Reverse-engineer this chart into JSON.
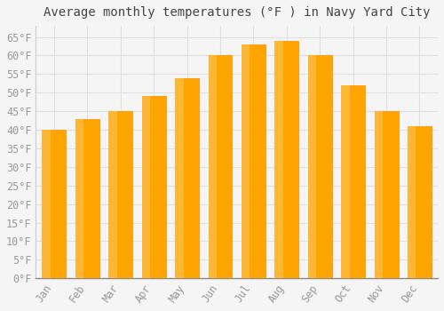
{
  "title": "Average monthly temperatures (°F ) in Navy Yard City",
  "months": [
    "Jan",
    "Feb",
    "Mar",
    "Apr",
    "May",
    "Jun",
    "Jul",
    "Aug",
    "Sep",
    "Oct",
    "Nov",
    "Dec"
  ],
  "values": [
    40,
    43,
    45,
    49,
    54,
    60,
    63,
    64,
    60,
    52,
    45,
    41
  ],
  "bar_color_face": "#FFA500",
  "bar_color_edge": "#FF8C00",
  "bar_color_left": "#FFB733",
  "background_color": "#F5F5F5",
  "grid_color": "#E0E0E0",
  "tick_label_color": "#999999",
  "title_color": "#444444",
  "ylim": [
    0,
    68
  ],
  "yticks": [
    0,
    5,
    10,
    15,
    20,
    25,
    30,
    35,
    40,
    45,
    50,
    55,
    60,
    65
  ],
  "title_fontsize": 10,
  "tick_fontsize": 8.5
}
